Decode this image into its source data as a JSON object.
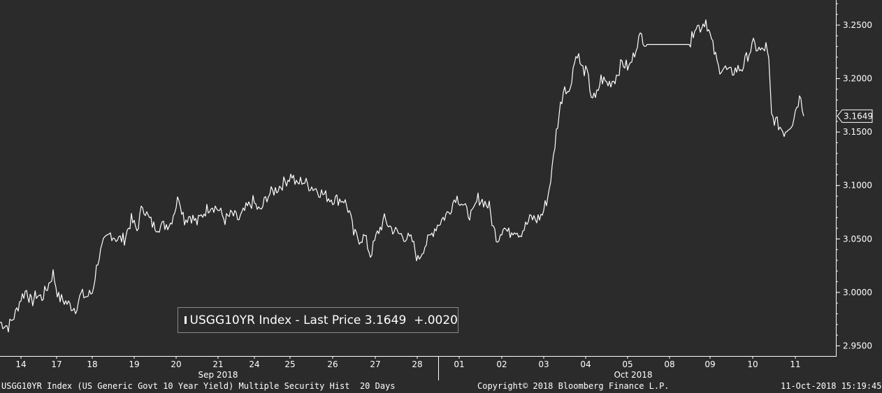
{
  "chart_data": {
    "type": "line",
    "title": "USGG10YR Index - Last Price 3.1649",
    "series": [
      {
        "name": "USGG10YR Index - Last Price",
        "last_value": "3.1649",
        "change": "+.0020",
        "color": "#ffffff",
        "points": [
          [
            0,
            2.972
          ],
          [
            12,
            2.968
          ],
          [
            22,
            2.98
          ],
          [
            30,
            2.995
          ],
          [
            38,
            3.002
          ],
          [
            45,
            2.99
          ],
          [
            52,
            2.998
          ],
          [
            60,
            2.995
          ],
          [
            68,
            3.005
          ],
          [
            76,
            3.018
          ],
          [
            84,
            2.995
          ],
          [
            92,
            2.992
          ],
          [
            100,
            2.988
          ],
          [
            108,
            2.985
          ],
          [
            116,
            2.998
          ],
          [
            124,
            2.996
          ],
          [
            132,
            3.0
          ],
          [
            140,
            3.03
          ],
          [
            148,
            3.045
          ],
          [
            158,
            3.055
          ],
          [
            168,
            3.05
          ],
          [
            178,
            3.05
          ],
          [
            188,
            3.068
          ],
          [
            196,
            3.058
          ],
          [
            204,
            3.082
          ],
          [
            212,
            3.07
          ],
          [
            220,
            3.062
          ],
          [
            232,
            3.062
          ],
          [
            244,
            3.065
          ],
          [
            256,
            3.09
          ],
          [
            264,
            3.068
          ],
          [
            272,
            3.072
          ],
          [
            282,
            3.065
          ],
          [
            292,
            3.075
          ],
          [
            302,
            3.082
          ],
          [
            312,
            3.078
          ],
          [
            322,
            3.068
          ],
          [
            332,
            3.073
          ],
          [
            342,
            3.068
          ],
          [
            352,
            3.078
          ],
          [
            362,
            3.085
          ],
          [
            372,
            3.075
          ],
          [
            382,
            3.09
          ],
          [
            392,
            3.095
          ],
          [
            402,
            3.1
          ],
          [
            410,
            3.105
          ],
          [
            418,
            3.11
          ],
          [
            424,
            3.1
          ],
          [
            432,
            3.105
          ],
          [
            442,
            3.1
          ],
          [
            452,
            3.097
          ],
          [
            462,
            3.092
          ],
          [
            472,
            3.088
          ],
          [
            482,
            3.087
          ],
          [
            492,
            3.087
          ],
          [
            500,
            3.075
          ],
          [
            506,
            3.055
          ],
          [
            514,
            3.05
          ],
          [
            522,
            3.052
          ],
          [
            530,
            3.035
          ],
          [
            540,
            3.055
          ],
          [
            550,
            3.068
          ],
          [
            560,
            3.06
          ],
          [
            570,
            3.055
          ],
          [
            580,
            3.052
          ],
          [
            590,
            3.048
          ],
          [
            598,
            3.03
          ],
          [
            606,
            3.042
          ],
          [
            614,
            3.05
          ],
          [
            622,
            3.06
          ],
          [
            632,
            3.068
          ],
          [
            642,
            3.075
          ],
          [
            652,
            3.09
          ],
          [
            660,
            3.085
          ],
          [
            668,
            3.075
          ],
          [
            676,
            3.072
          ],
          [
            684,
            3.088
          ],
          [
            692,
            3.085
          ],
          [
            700,
            3.08
          ],
          [
            706,
            3.06
          ],
          [
            712,
            3.05
          ],
          [
            720,
            3.062
          ],
          [
            728,
            3.055
          ],
          [
            736,
            3.06
          ],
          [
            744,
            3.055
          ],
          [
            752,
            3.062
          ],
          [
            760,
            3.07
          ],
          [
            768,
            3.068
          ],
          [
            776,
            3.073
          ],
          [
            784,
            3.09
          ],
          [
            790,
            3.115
          ],
          [
            796,
            3.15
          ],
          [
            802,
            3.175
          ],
          [
            808,
            3.195
          ],
          [
            814,
            3.185
          ],
          [
            820,
            3.21
          ],
          [
            826,
            3.225
          ],
          [
            832,
            3.21
          ],
          [
            840,
            3.205
          ],
          [
            846,
            3.185
          ],
          [
            852,
            3.18
          ],
          [
            860,
            3.2
          ],
          [
            870,
            3.195
          ],
          [
            880,
            3.2
          ],
          [
            890,
            3.215
          ],
          [
            900,
            3.21
          ],
          [
            906,
            3.22
          ],
          [
            912,
            3.235
          ],
          [
            918,
            3.24
          ],
          [
            926,
            3.232
          ],
          [
            934,
            3.232
          ],
          [
            950,
            3.232
          ],
          [
            970,
            3.232
          ],
          [
            988,
            3.232
          ],
          [
            994,
            3.25
          ],
          [
            1002,
            3.248
          ],
          [
            1010,
            3.255
          ],
          [
            1016,
            3.24
          ],
          [
            1022,
            3.225
          ],
          [
            1028,
            3.21
          ],
          [
            1036,
            3.21
          ],
          [
            1044,
            3.205
          ],
          [
            1052,
            3.208
          ],
          [
            1062,
            3.21
          ],
          [
            1070,
            3.222
          ],
          [
            1078,
            3.232
          ],
          [
            1084,
            3.228
          ],
          [
            1090,
            3.225
          ],
          [
            1096,
            3.23
          ],
          [
            1100,
            3.215
          ],
          [
            1104,
            3.165
          ],
          [
            1110,
            3.16
          ],
          [
            1116,
            3.155
          ],
          [
            1122,
            3.15
          ],
          [
            1128,
            3.155
          ],
          [
            1134,
            3.16
          ],
          [
            1140,
            3.175
          ],
          [
            1146,
            3.185
          ],
          [
            1150,
            3.1649
          ]
        ]
      }
    ],
    "y_ticks": [
      "3.2500",
      "3.2000",
      "3.1500",
      "3.1000",
      "3.0500",
      "3.0000",
      "2.9500"
    ],
    "y_tick_values": [
      3.25,
      3.2,
      3.15,
      3.1,
      3.05,
      3.0,
      2.95
    ],
    "ylim": [
      2.9405,
      3.2735
    ],
    "x_ticks": [
      "14",
      "17",
      "18",
      "19",
      "20",
      "21",
      "24",
      "25",
      "26",
      "27",
      "28",
      "01",
      "02",
      "03",
      "04",
      "05",
      "08",
      "09",
      "10",
      "11"
    ],
    "x_tick_positions": [
      30,
      81,
      132,
      192,
      252,
      312,
      364,
      415,
      476,
      537,
      597,
      657,
      718,
      778,
      838,
      898,
      958,
      1016,
      1077,
      1138
    ],
    "month_labels": [
      "Sep 2018",
      "Oct 2018"
    ],
    "grid": false,
    "last_price_label": "3.1649"
  },
  "footer": {
    "left": "USGG10YR Index (US Generic Govt 10 Year Yield) Multiple Security Hist  20 Days",
    "center": "Copyright© 2018 Bloomberg Finance L.P.",
    "right": "11-Oct-2018 15:19:45"
  },
  "colors": {
    "background": "#2b2b2b",
    "line": "#ffffff",
    "axis": "#ffffff"
  }
}
